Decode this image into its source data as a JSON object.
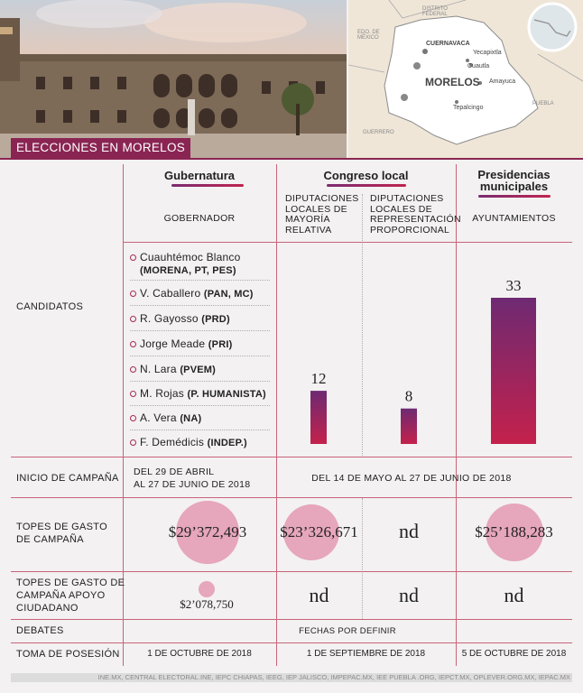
{
  "banner": {
    "title": "ELECCIONES EN MORELOS"
  },
  "map": {
    "state": "MORELOS",
    "cities": [
      "CUERNAVACA",
      "Yecapixtla",
      "Cuautla",
      "Amayuca",
      "Tepalcingo"
    ],
    "neighbors": [
      "DISTRITO FEDERAL",
      "EDO. DE MÉXICO",
      "PUEBLA",
      "GUERRERO"
    ]
  },
  "headers": {
    "gubernatura": "Gubernatura",
    "congreso": "Congreso local",
    "presidencias_1": "Presidencias",
    "presidencias_2": "municipales",
    "gobernador": "GOBERNADOR",
    "mayoria_1": "DIPUTACIONES",
    "mayoria_2": "LOCALES DE",
    "mayoria_3": "MAYORÍA",
    "mayoria_4": "RELATIVA",
    "rp_1": "DIPUTACIONES",
    "rp_2": "LOCALES DE",
    "rp_3": "REPRESENTACIÓN",
    "rp_4": "PROPORCIONAL",
    "ayuntamientos": "AYUNTAMIENTOS"
  },
  "rows": {
    "candidatos": "CANDIDATOS",
    "inicio": "INICIO DE CAMPAÑA",
    "topes_1": "TOPES DE GASTO",
    "topes_2": "DE CAMPAÑA",
    "apoyo_1": "TOPES DE GASTO DE",
    "apoyo_2": "CAMPAÑA APOYO",
    "apoyo_3": "CIUDADANO",
    "debates": "DEBATES",
    "toma": "TOMA DE POSESIÓN"
  },
  "candidates": [
    {
      "name": "Cuauhtémoc Blanco",
      "party": "(MORENA, PT, PES)"
    },
    {
      "name": "V. Caballero",
      "party": "(PAN, MC)"
    },
    {
      "name": "R. Gayosso",
      "party": "(PRD)"
    },
    {
      "name": "Jorge Meade",
      "party": "(PRI)"
    },
    {
      "name": "N. Lara",
      "party": "(PVEM)"
    },
    {
      "name": "M. Rojas",
      "party": "(P. HUMANISTA)"
    },
    {
      "name": "A. Vera",
      "party": "(NA)"
    },
    {
      "name": "F. Demédicis",
      "party": "(INDEP.)"
    }
  ],
  "chart_data": {
    "type": "bar",
    "categories": [
      "DIPUTACIONES LOCALES DE MAYORÍA RELATIVA",
      "DIPUTACIONES LOCALES DE REPRESENTACIÓN PROPORCIONAL",
      "AYUNTAMIENTOS"
    ],
    "values": [
      12,
      8,
      33
    ],
    "bar_gradient": [
      "#6e2a72",
      "#c4214c"
    ]
  },
  "inicio": {
    "gub_1": "DEL 29 DE ABRIL",
    "gub_2": "AL 27 DE JUNIO DE 2018",
    "resto": "DEL 14 DE MAYO AL 27 DE JUNIO DE 2018"
  },
  "topes": {
    "gub": "$29’372,493",
    "mayoria": "$23’326,671",
    "rp": "nd",
    "ayunt": "$25’188,283",
    "bubble_values": [
      29372493,
      23326671,
      25188283
    ]
  },
  "apoyo": {
    "gub": "$2’078,750",
    "mayoria": "nd",
    "rp": "nd",
    "ayunt": "nd",
    "bubble_value": 2078750
  },
  "debates": "FECHAS POR DEFINIR",
  "toma": {
    "gub": "1 DE OCTUBRE DE 2018",
    "congreso": "1 DE SEPTIEMBRE DE 2018",
    "ayunt": "5 DE OCTUBRE DE 2018"
  },
  "source": "INE.MX, CENTRAL ELECTORAL.INE, IEPC CHIAPAS, IEEG, IEP JALISCO, IMPEPAC.MX, IEE PUEBLA .ORG, IEPCT.MX, OPLEVER.ORG.MX, IEPAC.MX",
  "colors": {
    "accent": "#a42b52",
    "line": "#c7647b",
    "bubble": "#e6a6bb"
  }
}
